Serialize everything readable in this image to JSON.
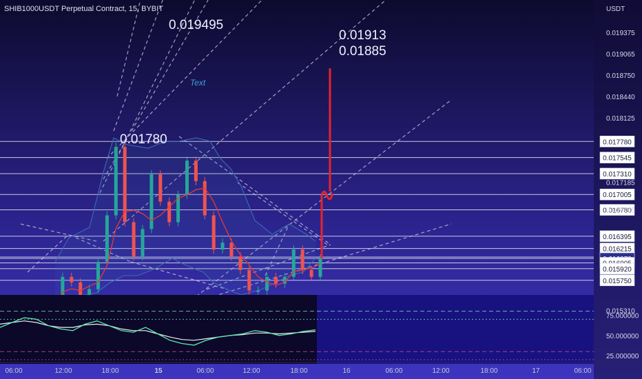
{
  "chart_data": {
    "type": "line",
    "title": "SHIB1000USDT Perpetual Contract, 15, BYBIT",
    "currency": "USDT",
    "y_scale": "linear",
    "price_ticks": [
      "0.019375",
      "0.019065",
      "0.018750",
      "0.018440",
      "0.018125",
      "0.017185",
      "0.016785",
      "0.015310"
    ],
    "price_ticks_values": [
      0.019375,
      0.019065,
      0.01875,
      0.01844,
      0.018125,
      0.017185,
      0.016785,
      0.01531
    ],
    "level_lines": [
      {
        "label": "0.017780",
        "value": 0.01778
      },
      {
        "label": "0.017545",
        "value": 0.017545
      },
      {
        "label": "0.017310",
        "value": 0.01731
      },
      {
        "label": "0.017005",
        "value": 0.017005
      },
      {
        "label": "0.016780",
        "value": 0.01678
      },
      {
        "label": "0.016395",
        "value": 0.016395
      },
      {
        "label": "0.016215",
        "value": 0.016215
      },
      {
        "label": "0.016090",
        "value": 0.01609
      },
      {
        "label": "0.016070",
        "value": 0.01607,
        "current": true
      },
      {
        "label": "0.016005",
        "value": 0.016005
      },
      {
        "label": "0.015920",
        "value": 0.01592
      },
      {
        "label": "0.015750",
        "value": 0.01575
      }
    ],
    "annotations": [
      {
        "text": "0.019495",
        "value": 0.019495
      },
      {
        "text": "0.01913",
        "value": 0.01913
      },
      {
        "text": "0.01885",
        "value": 0.01885
      },
      {
        "text": "0.01780",
        "value": 0.0178
      },
      {
        "text": "Text"
      }
    ],
    "x_ticks": [
      "06:00",
      "12:00",
      "18:00",
      "15",
      "06:00",
      "12:00",
      "18:00",
      "16",
      "06:00",
      "12:00",
      "18:00",
      "17",
      "06:00"
    ],
    "price_series": [
      {
        "time": "05:00",
        "close": 0.01536
      },
      {
        "time": "08:00",
        "close": 0.0158
      },
      {
        "time": "10:00",
        "close": 0.01572
      },
      {
        "time": "12:00",
        "close": 0.01552
      },
      {
        "time": "14:00",
        "close": 0.01562
      },
      {
        "time": "16:00",
        "close": 0.01602
      },
      {
        "time": "17:00",
        "close": 0.0167
      },
      {
        "time": "18:00",
        "close": 0.0177
      },
      {
        "time": "19:00",
        "close": 0.0166
      },
      {
        "time": "21:00",
        "close": 0.0161
      },
      {
        "time": "22:00",
        "close": 0.0165
      },
      {
        "time": "00:00",
        "close": 0.0173
      },
      {
        "time": "01:00",
        "close": 0.0169
      },
      {
        "time": "02:00",
        "close": 0.0166
      },
      {
        "time": "03:00",
        "close": 0.017
      },
      {
        "time": "04:00",
        "close": 0.0175
      },
      {
        "time": "05:00",
        "close": 0.0172
      },
      {
        "time": "06:00",
        "close": 0.0167
      },
      {
        "time": "07:00",
        "close": 0.0162
      },
      {
        "time": "08:00",
        "close": 0.0163
      },
      {
        "time": "09:00",
        "close": 0.0161
      },
      {
        "time": "10:00",
        "close": 0.0159
      },
      {
        "time": "11:00",
        "close": 0.0156
      },
      {
        "time": "12:00",
        "close": 0.0156
      },
      {
        "time": "13:00",
        "close": 0.0158
      },
      {
        "time": "14:00",
        "close": 0.0157
      },
      {
        "time": "15:00",
        "close": 0.0158
      },
      {
        "time": "16:00",
        "close": 0.0162
      },
      {
        "time": "17:00",
        "close": 0.0159
      },
      {
        "time": "18:00",
        "close": 0.0158
      },
      {
        "time": "19:00",
        "close": 0.01607
      }
    ],
    "projection": {
      "from": 0.01607,
      "to": 0.01885,
      "color": "#e8232a"
    },
    "oscillator": {
      "ticks": [
        "75.000000",
        "50.000000",
        "25.000000"
      ],
      "tick_values": [
        75,
        50,
        25
      ],
      "ylim": [
        20,
        95
      ],
      "levels": [
        80,
        70,
        30,
        20
      ],
      "series_green": [
        60,
        66,
        72,
        70,
        62,
        58,
        56,
        64,
        68,
        62,
        56,
        54,
        60,
        52,
        44,
        40,
        38,
        44,
        48,
        50,
        52,
        56,
        54,
        50,
        52,
        55,
        57
      ],
      "series_white": [
        64,
        66,
        68,
        66,
        62,
        60,
        60,
        63,
        64,
        62,
        58,
        56,
        56,
        52,
        48,
        45,
        44,
        46,
        48,
        50,
        51,
        53,
        53,
        52,
        53,
        54,
        55
      ]
    },
    "colors": {
      "up": "#26a69a",
      "down": "#ef5350",
      "bb": "#3d6bb3",
      "ma": "#e53935",
      "guide": "#d0d0e0",
      "accent": "#3aa5d8"
    }
  }
}
